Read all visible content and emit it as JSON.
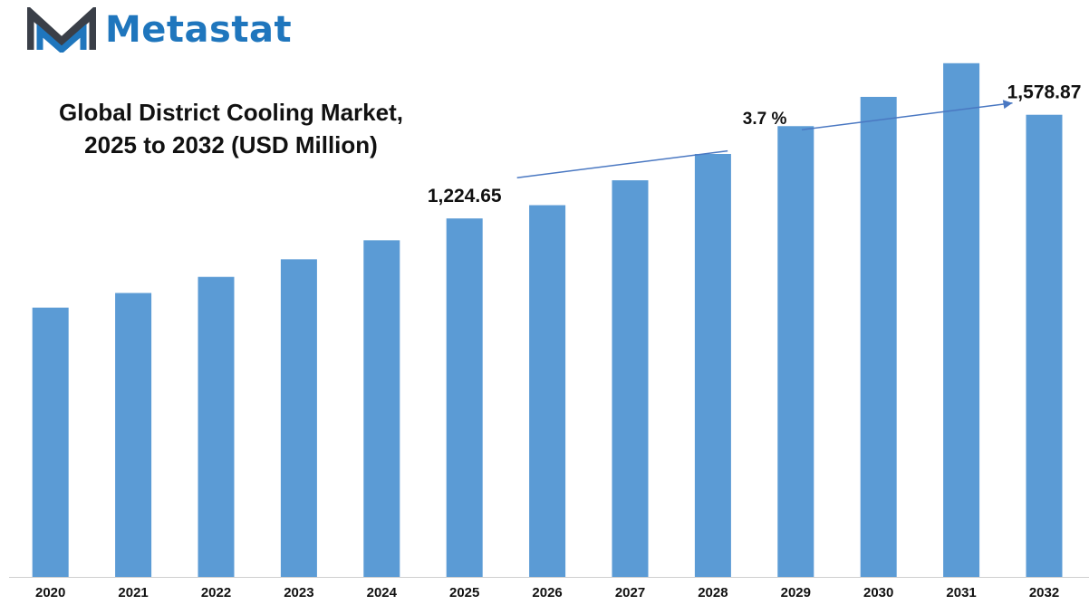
{
  "brand": {
    "name": "Metastat",
    "color": "#1f76bd",
    "mark_color": "#3a3f48"
  },
  "chart_data": {
    "type": "bar",
    "title_lines": [
      "Global District Cooling Market,",
      "2025 to 2032 (USD Million)"
    ],
    "categories": [
      "2020",
      "2021",
      "2022",
      "2023",
      "2024",
      "2025",
      "2026",
      "2027",
      "2028",
      "2029",
      "2030",
      "2031",
      "2032"
    ],
    "values": [
      920,
      970,
      1025,
      1085,
      1150,
      1224.65,
      1270,
      1355,
      1445,
      1540,
      1640,
      1755,
      1578.87
    ],
    "ylim": [
      0,
      1940
    ],
    "bar_color": "#5b9bd5",
    "data_labels": [
      {
        "category": "2025",
        "text": "1,224.65"
      },
      {
        "category": "2032",
        "text": "1,578.87"
      }
    ],
    "annotation": {
      "text": "3.7 %",
      "type": "growth-arrow",
      "from": "2025",
      "to": "2032"
    },
    "grid": false,
    "legend": "none"
  }
}
